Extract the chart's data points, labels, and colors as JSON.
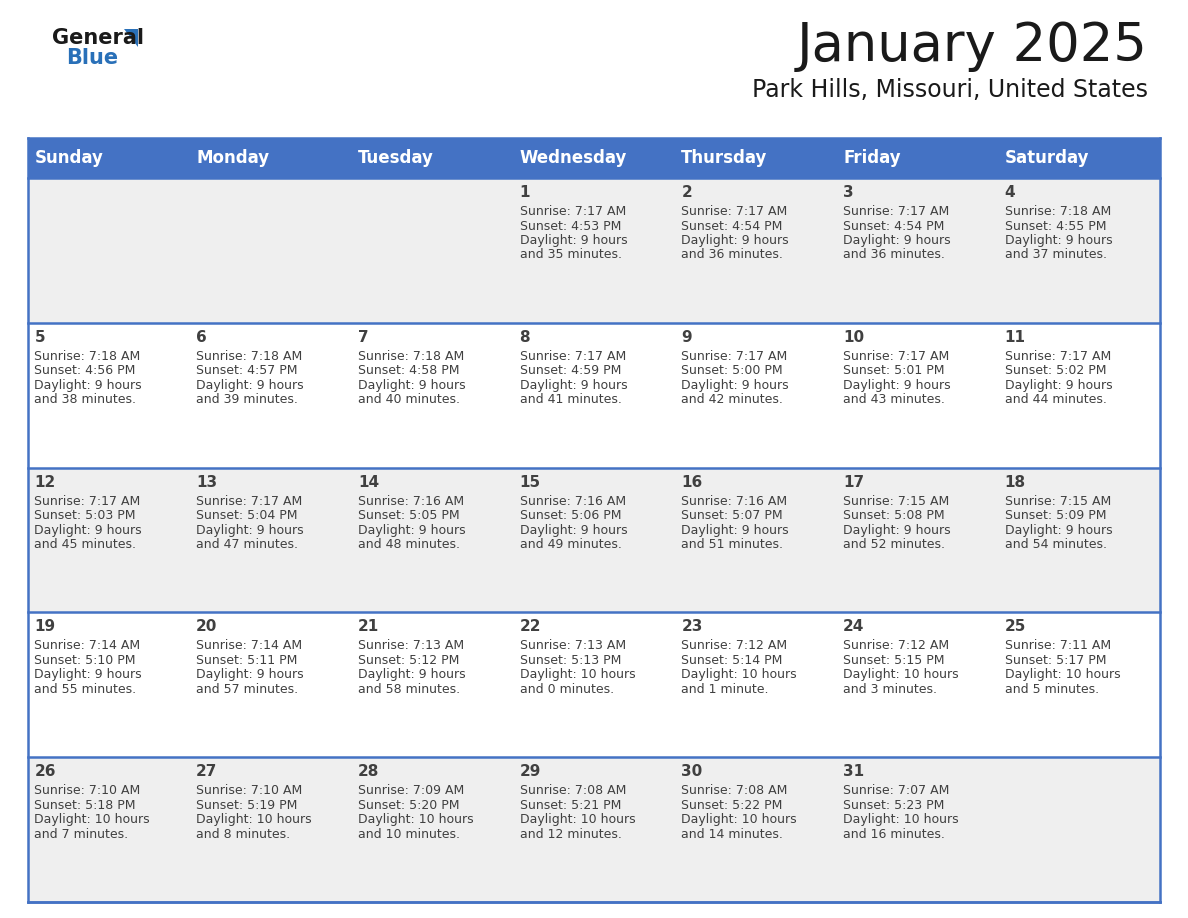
{
  "title": "January 2025",
  "subtitle": "Park Hills, Missouri, United States",
  "days_of_week": [
    "Sunday",
    "Monday",
    "Tuesday",
    "Wednesday",
    "Thursday",
    "Friday",
    "Saturday"
  ],
  "header_bg": "#4472C4",
  "header_text_color": "#FFFFFF",
  "cell_bg_odd": "#EFEFEF",
  "cell_bg_even": "#FFFFFF",
  "cell_border_color": "#4472C4",
  "text_color": "#404040",
  "title_color": "#1a1a1a",
  "logo_text_color": "#1a1a1a",
  "logo_blue_color": "#2970B8",
  "calendar_data": [
    [
      {
        "day": null,
        "sunrise": null,
        "sunset": null,
        "daylight": null
      },
      {
        "day": null,
        "sunrise": null,
        "sunset": null,
        "daylight": null
      },
      {
        "day": null,
        "sunrise": null,
        "sunset": null,
        "daylight": null
      },
      {
        "day": 1,
        "sunrise": "7:17 AM",
        "sunset": "4:53 PM",
        "daylight": "9 hours\nand 35 minutes."
      },
      {
        "day": 2,
        "sunrise": "7:17 AM",
        "sunset": "4:54 PM",
        "daylight": "9 hours\nand 36 minutes."
      },
      {
        "day": 3,
        "sunrise": "7:17 AM",
        "sunset": "4:54 PM",
        "daylight": "9 hours\nand 36 minutes."
      },
      {
        "day": 4,
        "sunrise": "7:18 AM",
        "sunset": "4:55 PM",
        "daylight": "9 hours\nand 37 minutes."
      }
    ],
    [
      {
        "day": 5,
        "sunrise": "7:18 AM",
        "sunset": "4:56 PM",
        "daylight": "9 hours\nand 38 minutes."
      },
      {
        "day": 6,
        "sunrise": "7:18 AM",
        "sunset": "4:57 PM",
        "daylight": "9 hours\nand 39 minutes."
      },
      {
        "day": 7,
        "sunrise": "7:18 AM",
        "sunset": "4:58 PM",
        "daylight": "9 hours\nand 40 minutes."
      },
      {
        "day": 8,
        "sunrise": "7:17 AM",
        "sunset": "4:59 PM",
        "daylight": "9 hours\nand 41 minutes."
      },
      {
        "day": 9,
        "sunrise": "7:17 AM",
        "sunset": "5:00 PM",
        "daylight": "9 hours\nand 42 minutes."
      },
      {
        "day": 10,
        "sunrise": "7:17 AM",
        "sunset": "5:01 PM",
        "daylight": "9 hours\nand 43 minutes."
      },
      {
        "day": 11,
        "sunrise": "7:17 AM",
        "sunset": "5:02 PM",
        "daylight": "9 hours\nand 44 minutes."
      }
    ],
    [
      {
        "day": 12,
        "sunrise": "7:17 AM",
        "sunset": "5:03 PM",
        "daylight": "9 hours\nand 45 minutes."
      },
      {
        "day": 13,
        "sunrise": "7:17 AM",
        "sunset": "5:04 PM",
        "daylight": "9 hours\nand 47 minutes."
      },
      {
        "day": 14,
        "sunrise": "7:16 AM",
        "sunset": "5:05 PM",
        "daylight": "9 hours\nand 48 minutes."
      },
      {
        "day": 15,
        "sunrise": "7:16 AM",
        "sunset": "5:06 PM",
        "daylight": "9 hours\nand 49 minutes."
      },
      {
        "day": 16,
        "sunrise": "7:16 AM",
        "sunset": "5:07 PM",
        "daylight": "9 hours\nand 51 minutes."
      },
      {
        "day": 17,
        "sunrise": "7:15 AM",
        "sunset": "5:08 PM",
        "daylight": "9 hours\nand 52 minutes."
      },
      {
        "day": 18,
        "sunrise": "7:15 AM",
        "sunset": "5:09 PM",
        "daylight": "9 hours\nand 54 minutes."
      }
    ],
    [
      {
        "day": 19,
        "sunrise": "7:14 AM",
        "sunset": "5:10 PM",
        "daylight": "9 hours\nand 55 minutes."
      },
      {
        "day": 20,
        "sunrise": "7:14 AM",
        "sunset": "5:11 PM",
        "daylight": "9 hours\nand 57 minutes."
      },
      {
        "day": 21,
        "sunrise": "7:13 AM",
        "sunset": "5:12 PM",
        "daylight": "9 hours\nand 58 minutes."
      },
      {
        "day": 22,
        "sunrise": "7:13 AM",
        "sunset": "5:13 PM",
        "daylight": "10 hours\nand 0 minutes."
      },
      {
        "day": 23,
        "sunrise": "7:12 AM",
        "sunset": "5:14 PM",
        "daylight": "10 hours\nand 1 minute."
      },
      {
        "day": 24,
        "sunrise": "7:12 AM",
        "sunset": "5:15 PM",
        "daylight": "10 hours\nand 3 minutes."
      },
      {
        "day": 25,
        "sunrise": "7:11 AM",
        "sunset": "5:17 PM",
        "daylight": "10 hours\nand 5 minutes."
      }
    ],
    [
      {
        "day": 26,
        "sunrise": "7:10 AM",
        "sunset": "5:18 PM",
        "daylight": "10 hours\nand 7 minutes."
      },
      {
        "day": 27,
        "sunrise": "7:10 AM",
        "sunset": "5:19 PM",
        "daylight": "10 hours\nand 8 minutes."
      },
      {
        "day": 28,
        "sunrise": "7:09 AM",
        "sunset": "5:20 PM",
        "daylight": "10 hours\nand 10 minutes."
      },
      {
        "day": 29,
        "sunrise": "7:08 AM",
        "sunset": "5:21 PM",
        "daylight": "10 hours\nand 12 minutes."
      },
      {
        "day": 30,
        "sunrise": "7:08 AM",
        "sunset": "5:22 PM",
        "daylight": "10 hours\nand 14 minutes."
      },
      {
        "day": 31,
        "sunrise": "7:07 AM",
        "sunset": "5:23 PM",
        "daylight": "10 hours\nand 16 minutes."
      },
      {
        "day": null,
        "sunrise": null,
        "sunset": null,
        "daylight": null
      }
    ]
  ]
}
